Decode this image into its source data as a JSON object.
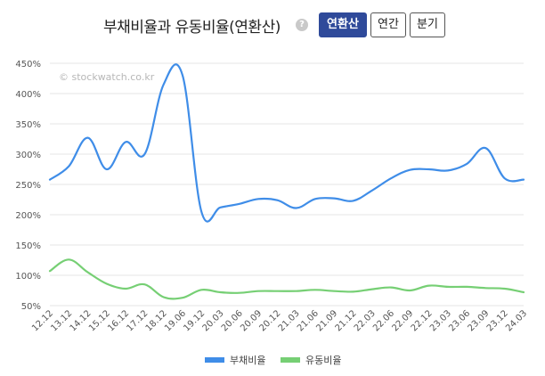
{
  "header": {
    "title": "부채비율과 유동비율(연환산)",
    "help_icon": "question-circle-icon",
    "buttons": [
      {
        "label": "연환산",
        "active": true
      },
      {
        "label": "연간",
        "active": false
      },
      {
        "label": "분기",
        "active": false
      }
    ]
  },
  "watermark": "© stockwatch.co.kr",
  "chart_data": {
    "type": "line",
    "title": "부채비율과 유동비율(연환산)",
    "x": [
      "12.12",
      "13.12",
      "14.12",
      "15.12",
      "16.12",
      "17.12",
      "18.12",
      "19.06",
      "19.12",
      "20.03",
      "20.06",
      "20.09",
      "20.12",
      "21.03",
      "21.06",
      "21.09",
      "21.12",
      "22.03",
      "22.06",
      "22.09",
      "22.12",
      "23.03",
      "23.06",
      "23.09",
      "23.12",
      "24.03"
    ],
    "ylim": [
      50,
      450
    ],
    "y_ticks": [
      50,
      100,
      150,
      200,
      250,
      300,
      350,
      400,
      450
    ],
    "y_tick_labels": [
      "50%",
      "100%",
      "150%",
      "200%",
      "250%",
      "300%",
      "350%",
      "400%",
      "450%"
    ],
    "grid": true,
    "legend_position": "bottom",
    "series": [
      {
        "name": "부채비율",
        "color": "#3f8de8",
        "values": [
          258,
          280,
          327,
          275,
          320,
          300,
          415,
          430,
          205,
          212,
          218,
          226,
          224,
          211,
          226,
          227,
          223,
          240,
          260,
          274,
          275,
          273,
          284,
          310,
          260,
          258
        ]
      },
      {
        "name": "유동비율",
        "color": "#76cf74",
        "values": [
          107,
          126,
          105,
          86,
          78,
          85,
          64,
          63,
          76,
          72,
          71,
          74,
          74,
          74,
          76,
          74,
          73,
          77,
          80,
          75,
          83,
          81,
          81,
          79,
          78,
          72
        ]
      }
    ]
  }
}
